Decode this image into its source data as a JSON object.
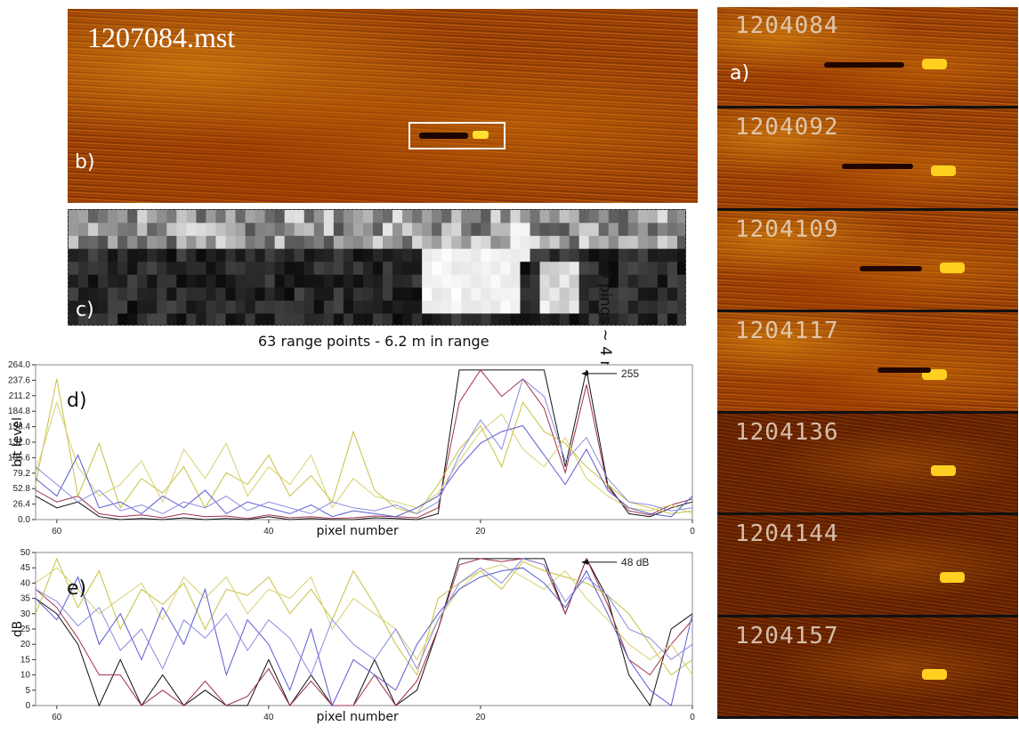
{
  "panel_b": {
    "title": "1207084.mst",
    "label": "b)"
  },
  "panel_a": {
    "label": "a)",
    "tiles": [
      {
        "id": "1204084"
      },
      {
        "id": "1204092"
      },
      {
        "id": "1204109"
      },
      {
        "id": "1204117"
      },
      {
        "id": "1204136"
      },
      {
        "id": "1204144"
      },
      {
        "id": "1204157"
      }
    ]
  },
  "panel_c": {
    "label": "c)",
    "x_caption": "63 range points - 6.2 m in range",
    "y_caption": "9 pings ~ 4 m",
    "grid_cols": 63,
    "grid_rows": 9,
    "bright_blob": {
      "col_start": 36,
      "col_end": 46,
      "row_start": 3,
      "row_end": 8
    }
  },
  "colors": {
    "black": "#111111",
    "red": "#a0304a",
    "olive": "#c8c040",
    "blue": "#5a5ad0",
    "lightblue": "#8a8ae0",
    "lightolive": "#d8d070"
  },
  "chart_data": [
    {
      "type": "line",
      "label": "d)",
      "ylabel": "bit level",
      "xlabel": "pixel number",
      "xlim": [
        62,
        0
      ],
      "ylim": [
        0,
        264
      ],
      "yticks": [
        "264.0",
        "237.6",
        "211.2",
        "184.8",
        "158.4",
        "132.0",
        "105.6",
        "79.2",
        "52.8",
        "26.4",
        "0.0"
      ],
      "xticks": [
        "60",
        "40",
        "20",
        "0"
      ],
      "annotation": "255",
      "series": [
        {
          "color": "black",
          "x": [
            62,
            60,
            58,
            56,
            54,
            52,
            50,
            48,
            46,
            44,
            42,
            40,
            38,
            36,
            34,
            32,
            30,
            28,
            26,
            24,
            22,
            20,
            18,
            16,
            14,
            12,
            10,
            8,
            6,
            4,
            2,
            0
          ],
          "y": [
            40,
            20,
            30,
            5,
            0,
            2,
            0,
            3,
            0,
            2,
            0,
            5,
            0,
            2,
            0,
            0,
            3,
            2,
            0,
            10,
            255,
            255,
            255,
            255,
            255,
            90,
            255,
            60,
            10,
            5,
            20,
            30
          ]
        },
        {
          "color": "red",
          "x": [
            62,
            60,
            58,
            56,
            54,
            52,
            50,
            48,
            46,
            44,
            42,
            40,
            38,
            36,
            34,
            32,
            30,
            28,
            26,
            24,
            22,
            20,
            18,
            16,
            14,
            12,
            10,
            8,
            6,
            4,
            2,
            0
          ],
          "y": [
            50,
            30,
            40,
            10,
            5,
            8,
            3,
            10,
            5,
            6,
            2,
            8,
            3,
            5,
            2,
            3,
            6,
            5,
            3,
            20,
            200,
            255,
            210,
            240,
            190,
            80,
            230,
            55,
            15,
            8,
            25,
            35
          ]
        },
        {
          "color": "olive",
          "x": [
            62,
            60,
            58,
            56,
            54,
            52,
            50,
            48,
            46,
            44,
            42,
            40,
            38,
            36,
            34,
            32,
            30,
            28,
            26,
            24,
            22,
            20,
            18,
            16,
            14,
            12,
            10,
            8,
            6,
            4,
            2,
            0
          ],
          "y": [
            60,
            240,
            40,
            130,
            20,
            70,
            45,
            90,
            20,
            80,
            60,
            110,
            40,
            75,
            30,
            150,
            50,
            20,
            10,
            60,
            120,
            160,
            90,
            200,
            150,
            130,
            90,
            60,
            30,
            20,
            10,
            15
          ]
        },
        {
          "color": "lightolive",
          "x": [
            62,
            60,
            58,
            56,
            54,
            52,
            50,
            48,
            46,
            44,
            42,
            40,
            38,
            36,
            34,
            32,
            30,
            28,
            26,
            24,
            22,
            20,
            18,
            16,
            14,
            12,
            10,
            8,
            6,
            4,
            2,
            0
          ],
          "y": [
            80,
            200,
            90,
            40,
            60,
            100,
            30,
            120,
            70,
            130,
            40,
            90,
            60,
            110,
            20,
            70,
            40,
            30,
            20,
            45,
            100,
            150,
            180,
            120,
            90,
            140,
            70,
            40,
            20,
            15,
            25,
            10
          ]
        },
        {
          "color": "blue",
          "x": [
            62,
            60,
            58,
            56,
            54,
            52,
            50,
            48,
            46,
            44,
            42,
            40,
            38,
            36,
            34,
            32,
            30,
            28,
            26,
            24,
            22,
            20,
            18,
            16,
            14,
            12,
            10,
            8,
            6,
            4,
            2,
            0
          ],
          "y": [
            70,
            40,
            110,
            20,
            30,
            10,
            40,
            20,
            50,
            10,
            30,
            20,
            10,
            25,
            5,
            15,
            10,
            5,
            20,
            40,
            90,
            130,
            150,
            160,
            110,
            60,
            120,
            50,
            20,
            10,
            5,
            40
          ]
        },
        {
          "color": "lightblue",
          "x": [
            62,
            60,
            58,
            56,
            54,
            52,
            50,
            48,
            46,
            44,
            42,
            40,
            38,
            36,
            34,
            32,
            30,
            28,
            26,
            24,
            22,
            20,
            18,
            16,
            14,
            12,
            10,
            8,
            6,
            4,
            2,
            0
          ],
          "y": [
            90,
            60,
            30,
            50,
            15,
            25,
            10,
            30,
            20,
            40,
            15,
            30,
            20,
            10,
            30,
            20,
            15,
            25,
            10,
            30,
            110,
            170,
            120,
            240,
            210,
            100,
            140,
            70,
            30,
            25,
            15,
            20
          ]
        }
      ]
    },
    {
      "type": "line",
      "label": "e)",
      "ylabel": "dB",
      "xlabel": "pixel number",
      "xlim": [
        62,
        0
      ],
      "ylim": [
        0,
        50
      ],
      "yticks": [
        "50",
        "45",
        "40",
        "35",
        "30",
        "25",
        "20",
        "15",
        "10",
        "5",
        "0"
      ],
      "xticks": [
        "60",
        "40",
        "20",
        "0"
      ],
      "annotation": "48 dB",
      "series": [
        {
          "color": "black",
          "x": [
            62,
            60,
            58,
            56,
            54,
            52,
            50,
            48,
            46,
            44,
            42,
            40,
            38,
            36,
            34,
            32,
            30,
            28,
            26,
            24,
            22,
            20,
            18,
            16,
            14,
            12,
            10,
            8,
            6,
            4,
            2,
            0
          ],
          "y": [
            35,
            30,
            20,
            0,
            15,
            0,
            10,
            0,
            5,
            0,
            0,
            15,
            0,
            10,
            0,
            0,
            15,
            0,
            5,
            25,
            48,
            48,
            48,
            48,
            48,
            30,
            48,
            35,
            10,
            0,
            25,
            30
          ]
        },
        {
          "color": "red",
          "x": [
            62,
            60,
            58,
            56,
            54,
            52,
            50,
            48,
            46,
            44,
            42,
            40,
            38,
            36,
            34,
            32,
            30,
            28,
            26,
            24,
            22,
            20,
            18,
            16,
            14,
            12,
            10,
            8,
            6,
            4,
            2,
            0
          ],
          "y": [
            38,
            32,
            22,
            10,
            10,
            0,
            5,
            0,
            8,
            0,
            3,
            12,
            0,
            8,
            0,
            0,
            10,
            0,
            8,
            25,
            46,
            48,
            47,
            48,
            46,
            30,
            48,
            33,
            15,
            10,
            20,
            28
          ]
        },
        {
          "color": "olive",
          "x": [
            62,
            60,
            58,
            56,
            54,
            52,
            50,
            48,
            46,
            44,
            42,
            40,
            38,
            36,
            34,
            32,
            30,
            28,
            26,
            24,
            22,
            20,
            18,
            16,
            14,
            12,
            10,
            8,
            6,
            4,
            2,
            0
          ],
          "y": [
            30,
            48,
            32,
            44,
            25,
            38,
            33,
            40,
            25,
            38,
            36,
            42,
            30,
            38,
            28,
            44,
            33,
            20,
            10,
            35,
            40,
            44,
            38,
            47,
            44,
            42,
            40,
            36,
            30,
            20,
            10,
            15
          ]
        },
        {
          "color": "lightolive",
          "x": [
            62,
            60,
            58,
            56,
            54,
            52,
            50,
            48,
            46,
            44,
            42,
            40,
            38,
            36,
            34,
            32,
            30,
            28,
            26,
            24,
            22,
            20,
            18,
            16,
            14,
            12,
            10,
            8,
            6,
            4,
            2,
            0
          ],
          "y": [
            40,
            45,
            38,
            30,
            35,
            40,
            28,
            42,
            35,
            42,
            30,
            38,
            35,
            42,
            25,
            35,
            30,
            25,
            15,
            28,
            38,
            44,
            46,
            42,
            38,
            44,
            35,
            28,
            20,
            15,
            20,
            10
          ]
        },
        {
          "color": "blue",
          "x": [
            62,
            60,
            58,
            56,
            54,
            52,
            50,
            48,
            46,
            44,
            42,
            40,
            38,
            36,
            34,
            32,
            30,
            28,
            26,
            24,
            22,
            20,
            18,
            16,
            14,
            12,
            10,
            8,
            6,
            4,
            2,
            0
          ],
          "y": [
            35,
            28,
            42,
            20,
            30,
            15,
            32,
            20,
            38,
            10,
            28,
            20,
            5,
            25,
            0,
            15,
            10,
            5,
            20,
            30,
            38,
            42,
            44,
            45,
            40,
            32,
            44,
            30,
            15,
            5,
            0,
            30
          ]
        },
        {
          "color": "lightblue",
          "x": [
            62,
            60,
            58,
            56,
            54,
            52,
            50,
            48,
            46,
            44,
            42,
            40,
            38,
            36,
            34,
            32,
            30,
            28,
            26,
            24,
            22,
            20,
            18,
            16,
            14,
            12,
            10,
            8,
            6,
            4,
            2,
            0
          ],
          "y": [
            38,
            34,
            26,
            32,
            18,
            25,
            12,
            28,
            22,
            30,
            18,
            28,
            22,
            10,
            28,
            20,
            15,
            25,
            12,
            28,
            40,
            45,
            40,
            48,
            46,
            34,
            42,
            36,
            25,
            22,
            15,
            20
          ]
        }
      ]
    }
  ]
}
